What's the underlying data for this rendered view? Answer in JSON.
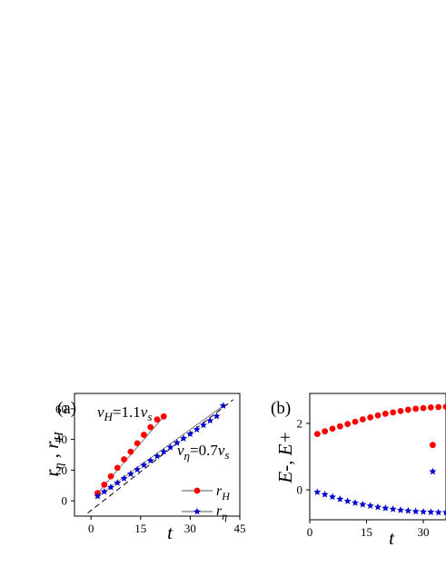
{
  "chart_data": [
    {
      "type": "scatter",
      "panel_label": "(a)",
      "xlabel": "t",
      "ylabel": {
        "base1": "r",
        "sub1": "η",
        "sep": " , ",
        "base2": "r",
        "sub2": "H"
      },
      "xlim": [
        -5,
        45
      ],
      "ylim": [
        -10,
        70
      ],
      "xticks": [
        0,
        15,
        30,
        45
      ],
      "yticks": [
        0,
        20,
        40,
        60
      ],
      "annotations": [
        {
          "name": "vH",
          "var": "v",
          "sub": "H",
          "rest": "=1.1",
          "var2": "v",
          "sub2": "s"
        },
        {
          "name": "veta",
          "var": "v",
          "sub": "η",
          "rest": "=0.7",
          "var2": "v",
          "sub2": "s"
        }
      ],
      "legend": {
        "position": "bottom-right"
      },
      "guide_line": {
        "style": "dashed",
        "from": [
          -1,
          -8
        ],
        "to": [
          43,
          66
        ]
      },
      "series": [
        {
          "name": "r_H",
          "label_base": "r",
          "label_sub": "H",
          "marker": "circle",
          "color": "#ff0000",
          "x": [
            2,
            4,
            6,
            8,
            10,
            12,
            14,
            16,
            18,
            20,
            22
          ],
          "y": [
            5,
            10.5,
            16,
            21.5,
            27,
            32,
            37.5,
            43,
            48,
            53,
            55
          ],
          "fit": [
            [
              2,
              5
            ],
            [
              22,
              55
            ]
          ]
        },
        {
          "name": "r_η",
          "label_base": "r",
          "label_sub": "η",
          "marker": "star",
          "color": "#0000cc",
          "x": [
            2,
            4,
            6,
            8,
            10,
            12,
            14,
            16,
            18,
            20,
            22,
            24,
            26,
            28,
            30,
            32,
            34,
            36,
            38,
            40
          ],
          "y": [
            3,
            5.9,
            8.8,
            11.7,
            14.6,
            17.5,
            20.4,
            23.3,
            26.2,
            29.1,
            32,
            34.9,
            37.8,
            40.7,
            43.6,
            46.5,
            49.4,
            52.3,
            55.2,
            62
          ],
          "fit": [
            [
              2,
              3
            ],
            [
              40,
              62
            ]
          ]
        }
      ]
    },
    {
      "type": "scatter",
      "panel_label": "(b)",
      "xlabel": "t",
      "ylabel": "E-, E+",
      "xlim": [
        0,
        36
      ],
      "ylim": [
        -0.9,
        2.9
      ],
      "xticks": [
        0,
        15,
        30
      ],
      "yticks": [
        0,
        2
      ],
      "series": [
        {
          "marker": "circle",
          "color": "#ff0000",
          "x": [
            2,
            4,
            6,
            8,
            10,
            12,
            14,
            16,
            18,
            20,
            22,
            24,
            26,
            28,
            30,
            32,
            34,
            36
          ],
          "y": [
            1.68,
            1.76,
            1.84,
            1.91,
            1.98,
            2.05,
            2.12,
            2.18,
            2.24,
            2.29,
            2.33,
            2.37,
            2.41,
            2.44,
            2.46,
            2.48,
            2.49,
            2.5
          ]
        },
        {
          "marker": "star",
          "color": "#0000cc",
          "x": [
            2,
            4,
            6,
            8,
            10,
            12,
            14,
            16,
            18,
            20,
            22,
            24,
            26,
            28,
            30,
            32,
            34,
            36
          ],
          "y": [
            -0.07,
            -0.14,
            -0.21,
            -0.28,
            -0.34,
            -0.39,
            -0.44,
            -0.48,
            -0.52,
            -0.55,
            -0.58,
            -0.61,
            -0.63,
            -0.65,
            -0.66,
            -0.67,
            -0.68,
            -0.68
          ]
        }
      ],
      "legend_markers": [
        {
          "marker": "circle",
          "color": "#ff0000",
          "x": 32.5,
          "y": 1.35
        },
        {
          "marker": "star",
          "color": "#0000cc",
          "x": 32.5,
          "y": 0.55
        }
      ]
    }
  ]
}
